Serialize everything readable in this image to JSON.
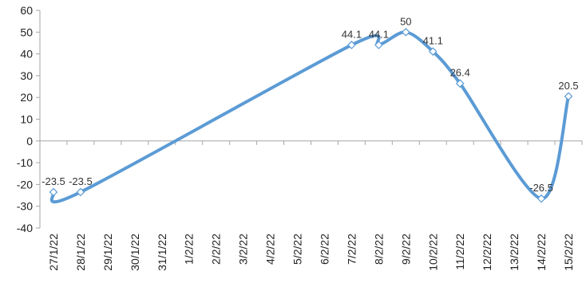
{
  "chart_data": {
    "type": "line",
    "title": "",
    "xlabel": "",
    "ylabel": "",
    "ylim": [
      -40,
      60
    ],
    "yticks": [
      60,
      50,
      40,
      30,
      20,
      10,
      0,
      -10,
      -20,
      -30,
      -40
    ],
    "grid": false,
    "legend": "none",
    "categories": [
      "27/1/22",
      "28/1/22",
      "29/1/22",
      "30/1/22",
      "31/1/22",
      "1/2/22",
      "2/2/22",
      "3/2/22",
      "4/2/22",
      "5/2/22",
      "6/2/22",
      "7/2/22",
      "8/2/22",
      "9/2/22",
      "10/2/22",
      "11/2/22",
      "12/2/22",
      "13/2/22",
      "14/2/22",
      "15/2/22"
    ],
    "points": [
      {
        "category": "27/1/22",
        "value": -23.5,
        "label": "-23.5"
      },
      {
        "category": "28/1/22",
        "value": -23.5,
        "label": "-23.5"
      },
      {
        "category": "7/2/22",
        "value": 44.1,
        "label": "44.1"
      },
      {
        "category": "8/2/22",
        "value": 44.1,
        "label": "44.1"
      },
      {
        "category": "9/2/22",
        "value": 50,
        "label": "50"
      },
      {
        "category": "10/2/22",
        "value": 41.1,
        "label": "41.1"
      },
      {
        "category": "11/2/22",
        "value": 26.4,
        "label": "26.4"
      },
      {
        "category": "14/2/22",
        "value": -26.5,
        "label": "-26.5"
      },
      {
        "category": "15/2/22",
        "value": 20.5,
        "label": "20.5"
      }
    ],
    "line_color": "#5b9bd5",
    "marker_fill": "#ffffff"
  }
}
